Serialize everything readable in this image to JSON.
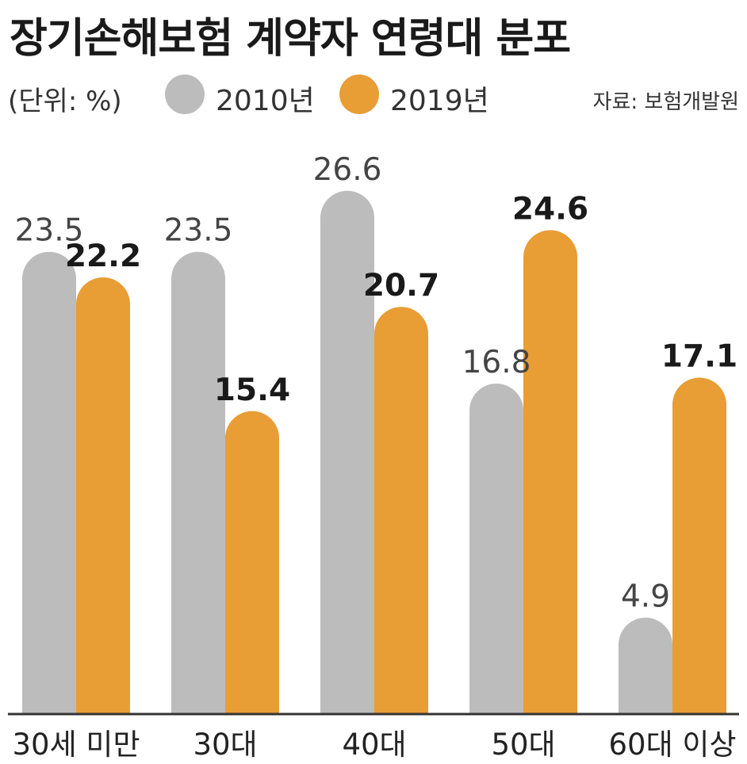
{
  "title": "장기손해보험 계약자 연령대 분포",
  "unit_label": "(단위: %)",
  "source": "자료: 보험개발원",
  "colors": {
    "series_2010": "#bcbcbc",
    "series_2019": "#e89d35",
    "axis": "#333333"
  },
  "chart_data": {
    "type": "bar",
    "title": "장기손해보험 계약자 연령대 분포",
    "categories": [
      "30세 미만",
      "30대",
      "40대",
      "50대",
      "60대 이상"
    ],
    "series": [
      {
        "name": "2010년",
        "values": [
          23.5,
          23.5,
          26.6,
          16.8,
          4.9
        ]
      },
      {
        "name": "2019년",
        "values": [
          22.2,
          15.4,
          20.7,
          24.6,
          17.1
        ]
      }
    ],
    "value_labels": {
      "2010년": [
        "23.5",
        "23.5",
        "26.6",
        "16.8",
        "4.9"
      ],
      "2019년": [
        "22.2",
        "15.4",
        "20.7",
        "24.6",
        "17.1"
      ]
    },
    "legend": [
      "2010년",
      "2019년"
    ],
    "legend_position": "top",
    "ylim": [
      0,
      28
    ],
    "grid": false,
    "xlabel": "",
    "ylabel": ""
  }
}
